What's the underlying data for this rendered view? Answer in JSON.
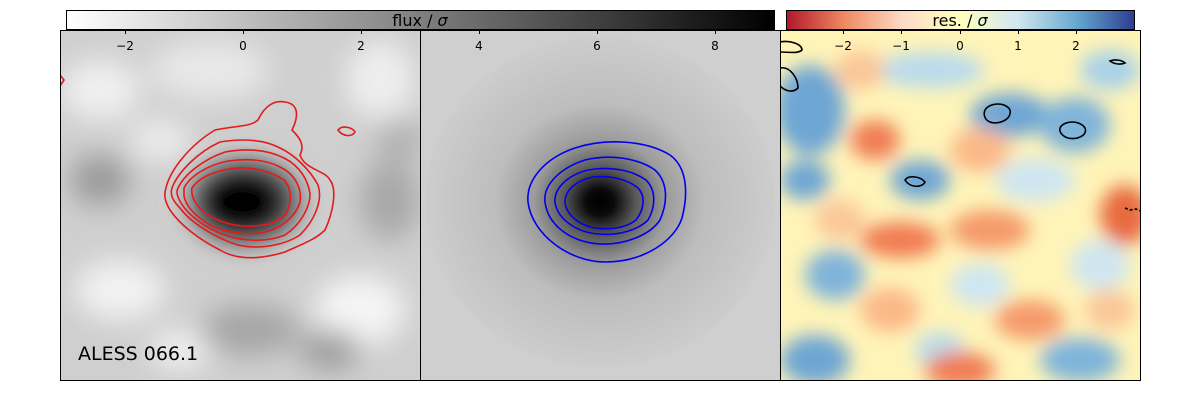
{
  "colorbars": {
    "flux": {
      "label": "flux / ",
      "symbol": "σ",
      "colormap": "Greys",
      "start_color": "#ffffff",
      "end_color": "#000000"
    },
    "residual": {
      "label": "res. / ",
      "symbol": "σ",
      "colormap": "RdYlBu",
      "stops": [
        "#b2182b",
        "#ef8a62",
        "#fddbc7",
        "#ffffbf",
        "#d1e5f0",
        "#67a9cf",
        "#2c3e8f"
      ]
    }
  },
  "panels": {
    "data": {
      "ticks": [
        "−2",
        "0",
        "2"
      ],
      "source_label": "ALESS 066.1",
      "contour_color": "#e41a1c"
    },
    "model": {
      "ticks": [
        "4",
        "6",
        "8"
      ],
      "contour_color": "#0000ee"
    },
    "residual": {
      "ticks": [
        "−2",
        "−1",
        "0",
        "1",
        "2"
      ],
      "contour_color": "#000000"
    }
  }
}
